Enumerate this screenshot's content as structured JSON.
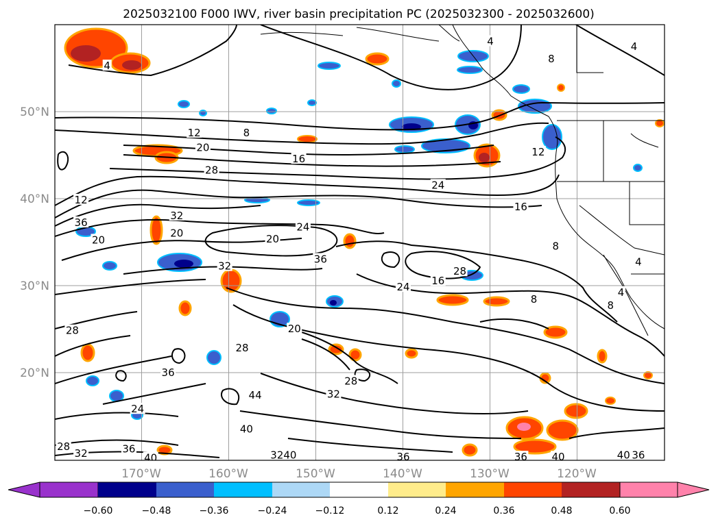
{
  "title": "2025032100 F000 IWV, river basin precipitation PC (2025032300 - 2025032600)",
  "map": {
    "lon_labels": [
      "170°W",
      "160°W",
      "150°W",
      "140°W",
      "130°W",
      "120°W"
    ],
    "lat_labels": [
      "50°N",
      "40°N",
      "30°N",
      "20°N"
    ],
    "lon_range": [
      -180,
      -110
    ],
    "lat_range": [
      10,
      60
    ]
  },
  "colorbar": {
    "tick_labels": [
      "−0.60",
      "−0.48",
      "−0.36",
      "−0.24",
      "−0.12",
      "0.12",
      "0.24",
      "0.36",
      "0.48",
      "0.60"
    ],
    "colors": [
      "#9932cc",
      "#00008b",
      "#3a5fcd",
      "#00bfff",
      "#add8f6",
      "#ffffff",
      "#ffec8b",
      "#ffa500",
      "#ff4500",
      "#b22222",
      "#ff82ab"
    ]
  },
  "contour_labels": [
    {
      "text": "4",
      "lon": -174,
      "lat": 55.2
    },
    {
      "text": "4",
      "lon": -130,
      "lat": 58
    },
    {
      "text": "8",
      "lon": -123,
      "lat": 56
    },
    {
      "text": "12",
      "lon": -164,
      "lat": 47.5
    },
    {
      "text": "8",
      "lon": -158,
      "lat": 47.5
    },
    {
      "text": "20",
      "lon": -163,
      "lat": 45.8
    },
    {
      "text": "16",
      "lon": -152,
      "lat": 44.5
    },
    {
      "text": "28",
      "lon": -162,
      "lat": 43.2
    },
    {
      "text": "24",
      "lon": -136,
      "lat": 41.5
    },
    {
      "text": "12",
      "lon": -177,
      "lat": 39.8
    },
    {
      "text": "36",
      "lon": -177,
      "lat": 37.2
    },
    {
      "text": "20",
      "lon": -175,
      "lat": 35.2
    },
    {
      "text": "32",
      "lon": -166,
      "lat": 38
    },
    {
      "text": "20",
      "lon": -166,
      "lat": 36
    },
    {
      "text": "20",
      "lon": -155,
      "lat": 35.3
    },
    {
      "text": "24",
      "lon": -151.5,
      "lat": 36.7
    },
    {
      "text": "36",
      "lon": -149.5,
      "lat": 33
    },
    {
      "text": "32",
      "lon": -160.5,
      "lat": 32.2
    },
    {
      "text": "28",
      "lon": -133.5,
      "lat": 31.6
    },
    {
      "text": "16",
      "lon": -136,
      "lat": 30.5
    },
    {
      "text": "24",
      "lon": -140,
      "lat": 29.8
    },
    {
      "text": "12",
      "lon": -124.5,
      "lat": 45.3
    },
    {
      "text": "16",
      "lon": -126.5,
      "lat": 39
    },
    {
      "text": "8",
      "lon": -122.5,
      "lat": 34.5
    },
    {
      "text": "8",
      "lon": -125,
      "lat": 28.4
    },
    {
      "text": "28",
      "lon": -178,
      "lat": 24.8
    },
    {
      "text": "20",
      "lon": -152.5,
      "lat": 25
    },
    {
      "text": "28",
      "lon": -158.5,
      "lat": 22.8
    },
    {
      "text": "36",
      "lon": -167,
      "lat": 20
    },
    {
      "text": "32",
      "lon": -148,
      "lat": 17.5
    },
    {
      "text": "28",
      "lon": -146,
      "lat": 19
    },
    {
      "text": "24",
      "lon": -170.5,
      "lat": 15.8
    },
    {
      "text": "40",
      "lon": -158,
      "lat": 13.5
    },
    {
      "text": "44",
      "lon": -157,
      "lat": 17.4
    },
    {
      "text": "28",
      "lon": -179,
      "lat": 11.5
    },
    {
      "text": "32",
      "lon": -177,
      "lat": 10.7
    },
    {
      "text": "36",
      "lon": -171.5,
      "lat": 11.2
    },
    {
      "text": "40",
      "lon": -169,
      "lat": 10.2
    },
    {
      "text": "36",
      "lon": -140,
      "lat": 10.3
    },
    {
      "text": "36",
      "lon": -126.5,
      "lat": 10.3
    },
    {
      "text": "40",
      "lon": -122.2,
      "lat": 10.3
    },
    {
      "text": "40",
      "lon": -114.7,
      "lat": 10.5
    },
    {
      "text": "36",
      "lon": -113,
      "lat": 10.5
    },
    {
      "text": "32",
      "lon": -154.5,
      "lat": 10.5
    },
    {
      "text": "40",
      "lon": -153,
      "lat": 10.5
    },
    {
      "text": "4",
      "lon": -115,
      "lat": 29.2
    },
    {
      "text": "8",
      "lon": -116.2,
      "lat": 27.7
    },
    {
      "text": "4",
      "lon": -113,
      "lat": 32.7
    },
    {
      "text": "4",
      "lon": -113.5,
      "lat": 57.4
    }
  ]
}
